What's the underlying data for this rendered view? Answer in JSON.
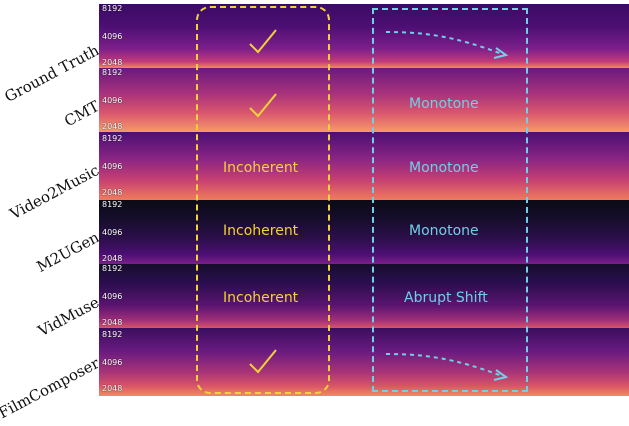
{
  "rows": [
    {
      "label": "Ground Truth",
      "ticks": [
        "8192",
        "4096",
        "2048"
      ],
      "annotations": []
    },
    {
      "label": "CMT",
      "ticks": [
        "8192",
        "4096",
        "2048"
      ],
      "annotations": [
        {
          "text": "Monotone",
          "color": "cyan"
        }
      ]
    },
    {
      "label": "Video2Music",
      "ticks": [
        "8192",
        "4096",
        "2048"
      ],
      "annotations": [
        {
          "text": "Incoherent",
          "color": "yellow"
        },
        {
          "text": "Monotone",
          "color": "cyan"
        }
      ]
    },
    {
      "label": "M2UGen",
      "ticks": [
        "8192",
        "4096",
        "2048"
      ],
      "annotations": [
        {
          "text": "Incoherent",
          "color": "yellow"
        },
        {
          "text": "Monotone",
          "color": "cyan"
        }
      ]
    },
    {
      "label": "VidMuse",
      "ticks": [
        "8192",
        "4096",
        "2048"
      ],
      "annotations": [
        {
          "text": "Incoherent",
          "color": "yellow"
        },
        {
          "text": "Abrupt Shift",
          "color": "cyan"
        }
      ]
    },
    {
      "label": "FilmComposer",
      "ticks": [
        "8192",
        "4096",
        "2048"
      ],
      "annotations": []
    }
  ],
  "colors": {
    "yellow": "#f2d23a",
    "cyan": "#6fd0e6"
  },
  "icons": [
    "checkmark-icon",
    "dashed-arrow-icon"
  ]
}
